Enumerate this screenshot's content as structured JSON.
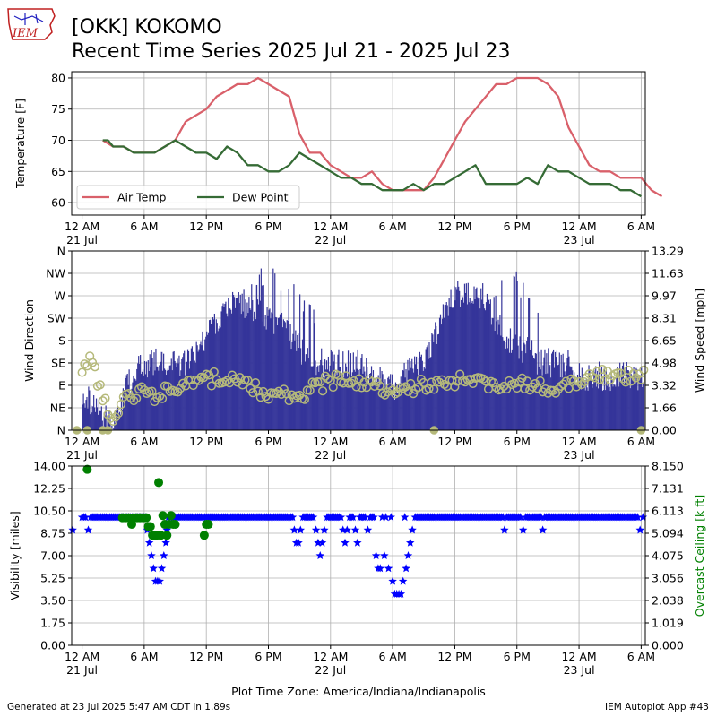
{
  "header": {
    "title_line1": "[OKK] KOKOMO",
    "title_line2": "Recent Time Series 2025 Jul 21 - 2025 Jul 23",
    "logo_text": "IEM"
  },
  "footer": {
    "left": "Generated at 23 Jul 2025 5:47 AM CDT in 1.89s",
    "right": "IEM Autoplot App #43"
  },
  "xaxis": {
    "tick_labels": [
      "12 AM",
      "6 AM",
      "12 PM",
      "6 PM",
      "12 AM",
      "6 AM",
      "12 PM",
      "6 PM",
      "12 AM",
      "6 AM"
    ],
    "tick_hours": [
      0,
      6,
      12,
      18,
      24,
      30,
      36,
      42,
      48,
      54
    ],
    "day_labels": [
      {
        "hour": 0,
        "text": "21 Jul"
      },
      {
        "hour": 24,
        "text": "22 Jul"
      },
      {
        "hour": 48,
        "text": "23 Jul"
      }
    ],
    "range_hours": [
      -1,
      54.4
    ],
    "xlabel": "Plot Time Zone: America/Indiana/Indianapolis"
  },
  "colors": {
    "air_temp": "#d9606a",
    "dew_point": "#356b35",
    "wind_speed_bars": "#35359a",
    "wind_direction_markers": "#b5b97a",
    "visibility": "#0000ff",
    "ceiling": "#008000"
  },
  "chart_data": [
    {
      "type": "line",
      "panel": "temperature",
      "x_units": "hours since 2025-07-21 12 AM",
      "ylabel": "Temperature [F]",
      "ylim": [
        58,
        81
      ],
      "yticks": [
        60,
        65,
        70,
        75,
        80
      ],
      "grid": true,
      "legend_position": "lower-left",
      "series": [
        {
          "name": "Air Temp",
          "points": [
            [
              2,
              70
            ],
            [
              3,
              69
            ],
            [
              4,
              69
            ],
            [
              5,
              68
            ],
            [
              6,
              68
            ],
            [
              7,
              68
            ],
            [
              8,
              69
            ],
            [
              9,
              70
            ],
            [
              10,
              73
            ],
            [
              11,
              74
            ],
            [
              12,
              75
            ],
            [
              13,
              77
            ],
            [
              14,
              78
            ],
            [
              15,
              79
            ],
            [
              16,
              79
            ],
            [
              17,
              80
            ],
            [
              18,
              79
            ],
            [
              19,
              78
            ],
            [
              20,
              77
            ],
            [
              21,
              71
            ],
            [
              22,
              68
            ],
            [
              23,
              68
            ],
            [
              24,
              66
            ],
            [
              25,
              65
            ],
            [
              26,
              64
            ],
            [
              27,
              64
            ],
            [
              28,
              65
            ],
            [
              29,
              63
            ],
            [
              30,
              62
            ],
            [
              31,
              62
            ],
            [
              32,
              62
            ],
            [
              33,
              62
            ],
            [
              34,
              64
            ],
            [
              35,
              67
            ],
            [
              36,
              70
            ],
            [
              37,
              73
            ],
            [
              38,
              75
            ],
            [
              39,
              77
            ],
            [
              40,
              79
            ],
            [
              41,
              79
            ],
            [
              42,
              80
            ],
            [
              43,
              80
            ],
            [
              44,
              80
            ],
            [
              45,
              79
            ],
            [
              46,
              77
            ],
            [
              47,
              72
            ],
            [
              48,
              69
            ],
            [
              49,
              66
            ],
            [
              50,
              65
            ],
            [
              51,
              65
            ],
            [
              52,
              64
            ],
            [
              53,
              64
            ],
            [
              54,
              64
            ],
            [
              55,
              62
            ],
            [
              56,
              61
            ]
          ]
        },
        {
          "name": "Dew Point",
          "points": [
            [
              2,
              70
            ],
            [
              2.5,
              70
            ],
            [
              3,
              69
            ],
            [
              4,
              69
            ],
            [
              5,
              68
            ],
            [
              6,
              68
            ],
            [
              7,
              68
            ],
            [
              8,
              69
            ],
            [
              9,
              70
            ],
            [
              10,
              69
            ],
            [
              11,
              68
            ],
            [
              12,
              68
            ],
            [
              13,
              67
            ],
            [
              14,
              69
            ],
            [
              15,
              68
            ],
            [
              16,
              66
            ],
            [
              17,
              66
            ],
            [
              18,
              65
            ],
            [
              19,
              65
            ],
            [
              20,
              66
            ],
            [
              21,
              68
            ],
            [
              22,
              67
            ],
            [
              23,
              66
            ],
            [
              24,
              65
            ],
            [
              25,
              64
            ],
            [
              26,
              64
            ],
            [
              27,
              63
            ],
            [
              28,
              63
            ],
            [
              29,
              62
            ],
            [
              30,
              62
            ],
            [
              31,
              62
            ],
            [
              32,
              63
            ],
            [
              33,
              62
            ],
            [
              34,
              63
            ],
            [
              35,
              63
            ],
            [
              36,
              64
            ],
            [
              37,
              65
            ],
            [
              38,
              66
            ],
            [
              39,
              63
            ],
            [
              40,
              63
            ],
            [
              41,
              63
            ],
            [
              42,
              63
            ],
            [
              43,
              64
            ],
            [
              44,
              63
            ],
            [
              45,
              66
            ],
            [
              46,
              65
            ],
            [
              47,
              65
            ],
            [
              48,
              64
            ],
            [
              49,
              63
            ],
            [
              50,
              63
            ],
            [
              51,
              63
            ],
            [
              52,
              62
            ],
            [
              53,
              62
            ],
            [
              54,
              61
            ]
          ]
        }
      ]
    },
    {
      "type": "bar",
      "panel": "wind",
      "ylabel": "Wind Direction",
      "ylabel_right": "Wind Speed [mph]",
      "direction_tick_labels": [
        "N",
        "NE",
        "E",
        "SE",
        "S",
        "SW",
        "W",
        "NW",
        "N"
      ],
      "direction_ticks_deg": [
        0,
        45,
        90,
        135,
        180,
        225,
        270,
        315,
        360
      ],
      "speed_tick_labels": [
        "0.00",
        "1.66",
        "3.32",
        "4.98",
        "6.65",
        "8.31",
        "9.97",
        "11.63",
        "13.29"
      ],
      "speed_ylim": [
        0,
        13.29
      ],
      "grid": true,
      "series": [
        {
          "name": "Wind Speed",
          "hourly_speed_mph": [
            3,
            2,
            1,
            0,
            3,
            4,
            5,
            5,
            5,
            5,
            5,
            6,
            7,
            8,
            9,
            10,
            9,
            9,
            8,
            8,
            7,
            6,
            5,
            5,
            5,
            5,
            5,
            5,
            4,
            4,
            3,
            4,
            5,
            5,
            7,
            9,
            10,
            10,
            10,
            9,
            8,
            7,
            6,
            6,
            5,
            5,
            5,
            5,
            4,
            4,
            4,
            4,
            4,
            4,
            4,
            4
          ],
          "gust_speed_mph": [
            0,
            0,
            0,
            0,
            0,
            0,
            0,
            0,
            0,
            0,
            0,
            0,
            0,
            0,
            0,
            0,
            12,
            12,
            12,
            11,
            11,
            10,
            9,
            0,
            0,
            0,
            0,
            0,
            0,
            0,
            0,
            0,
            0,
            0,
            0,
            0,
            0,
            0,
            11,
            11,
            12,
            12,
            11,
            10,
            0,
            0,
            0,
            0,
            0,
            0,
            0,
            0,
            0,
            0,
            0,
            0
          ]
        },
        {
          "name": "Wind Direction",
          "hourly_direction_deg": [
            130,
            140,
            60,
            20,
            60,
            70,
            75,
            70,
            80,
            85,
            95,
            100,
            100,
            105,
            100,
            95,
            90,
            80,
            75,
            80,
            70,
            65,
            80,
            90,
            100,
            100,
            95,
            95,
            90,
            85,
            80,
            85,
            85,
            90,
            95,
            100,
            100,
            100,
            95,
            95,
            90,
            90,
            95,
            95,
            90,
            85,
            80,
            90,
            100,
            105,
            110,
            115,
            110,
            110,
            115,
            120
          ]
        }
      ]
    },
    {
      "type": "scatter",
      "panel": "visibility",
      "ylabel": "Visibility [miles]",
      "ylabel_right": "Overcast Ceiling [k ft]",
      "ylim": [
        0,
        14
      ],
      "yticks": [
        "0.00",
        "1.75",
        "3.50",
        "5.25",
        "7.00",
        "8.75",
        "10.50",
        "12.25",
        "14.00"
      ],
      "ceiling_ylim": [
        0,
        8.15
      ],
      "ceiling_yticks": [
        "0.000",
        "1.019",
        "2.038",
        "3.056",
        "4.075",
        "5.094",
        "6.113",
        "7.131",
        "8.150"
      ],
      "grid": true,
      "series": [
        {
          "name": "Visibility",
          "baseline_miles": 10,
          "points": [
            [
              -0.9,
              9
            ],
            [
              0.6,
              9
            ],
            [
              6.3,
              9
            ],
            [
              6.5,
              8
            ],
            [
              6.7,
              7
            ],
            [
              6.9,
              6
            ],
            [
              7.1,
              5
            ],
            [
              7.3,
              5
            ],
            [
              7.5,
              5
            ],
            [
              7.7,
              6
            ],
            [
              7.9,
              7
            ],
            [
              8.1,
              8
            ],
            [
              8.2,
              9
            ],
            [
              20.5,
              9
            ],
            [
              20.7,
              8
            ],
            [
              20.9,
              8
            ],
            [
              21.1,
              9
            ],
            [
              22.6,
              9
            ],
            [
              22.8,
              8
            ],
            [
              23.0,
              7
            ],
            [
              23.2,
              8
            ],
            [
              23.4,
              9
            ],
            [
              25.2,
              9
            ],
            [
              25.4,
              8
            ],
            [
              25.6,
              9
            ],
            [
              26.4,
              9
            ],
            [
              26.6,
              8
            ],
            [
              27.6,
              9
            ],
            [
              28.4,
              7
            ],
            [
              28.6,
              6
            ],
            [
              28.8,
              6
            ],
            [
              29.2,
              7
            ],
            [
              29.6,
              6
            ],
            [
              30.0,
              5
            ],
            [
              30.2,
              4
            ],
            [
              30.4,
              4
            ],
            [
              30.6,
              4
            ],
            [
              30.8,
              4
            ],
            [
              31.0,
              5
            ],
            [
              31.3,
              6
            ],
            [
              31.5,
              7
            ],
            [
              31.7,
              8
            ],
            [
              31.9,
              9
            ],
            [
              40.8,
              9
            ],
            [
              42.6,
              9
            ],
            [
              44.5,
              9
            ],
            [
              53.9,
              9
            ]
          ]
        },
        {
          "name": "Overcast Ceiling",
          "points": [
            [
              0.5,
              8.0
            ],
            [
              3.9,
              5.8
            ],
            [
              4.2,
              5.8
            ],
            [
              4.5,
              5.8
            ],
            [
              4.8,
              5.5
            ],
            [
              5.0,
              5.8
            ],
            [
              5.3,
              5.8
            ],
            [
              5.6,
              5.8
            ],
            [
              5.9,
              5.8
            ],
            [
              6.2,
              5.8
            ],
            [
              6.4,
              5.4
            ],
            [
              6.6,
              5.4
            ],
            [
              6.8,
              5.0
            ],
            [
              7.0,
              5.0
            ],
            [
              7.2,
              5.0
            ],
            [
              7.4,
              7.4
            ],
            [
              7.6,
              5.0
            ],
            [
              7.8,
              5.9
            ],
            [
              8.0,
              5.5
            ],
            [
              8.2,
              5.0
            ],
            [
              8.4,
              5.5
            ],
            [
              8.6,
              5.9
            ],
            [
              8.8,
              5.5
            ],
            [
              9.0,
              5.5
            ],
            [
              11.8,
              5.0
            ],
            [
              12.0,
              5.5
            ],
            [
              12.2,
              5.5
            ]
          ]
        }
      ]
    }
  ]
}
